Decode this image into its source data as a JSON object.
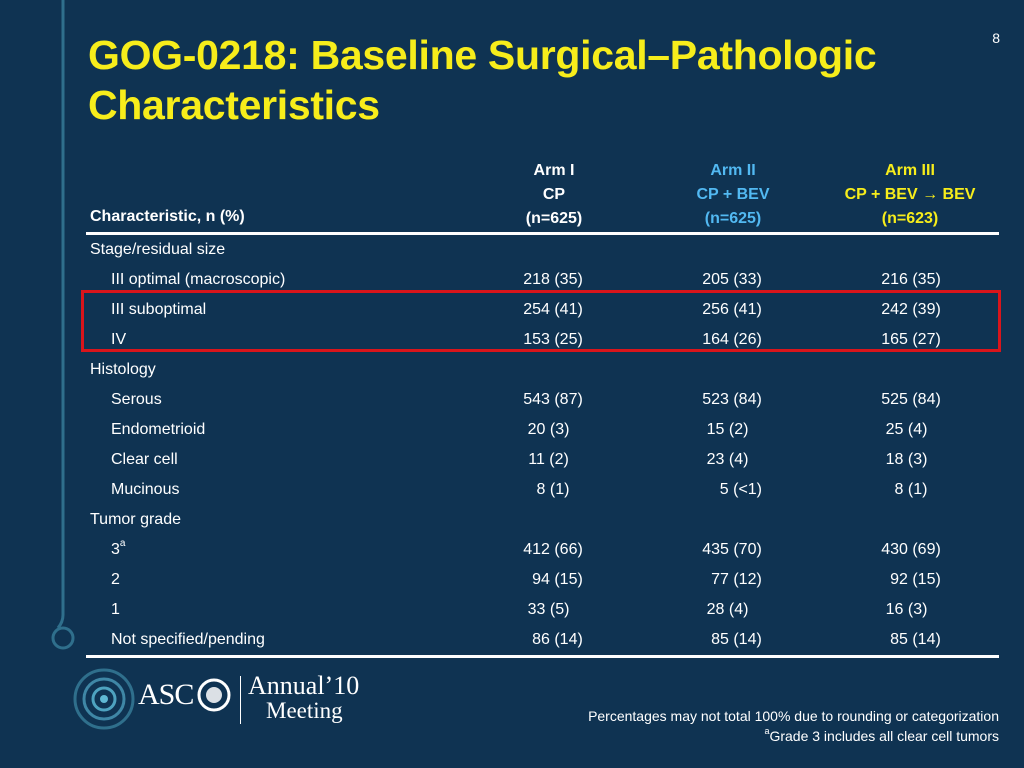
{
  "slide": {
    "number": "8",
    "title": "GOG-0218: Baseline Surgical–Pathologic Characteristics"
  },
  "table": {
    "char_header": "Characteristic, n (%)",
    "arms": [
      {
        "name": "Arm I",
        "regimen": "CP",
        "n": "(n=625)",
        "color": "#ffffff"
      },
      {
        "name": "Arm II",
        "regimen": "CP + BEV",
        "n": "(n=625)",
        "color": "#52b9f2"
      },
      {
        "name": "Arm III",
        "regimen": "CP + BEV → BEV",
        "n": "(n=623)",
        "color": "#f7ed1b"
      }
    ],
    "rows": [
      {
        "label": "Stage/residual size",
        "section": true
      },
      {
        "label": "III optimal (macroscopic)",
        "values": [
          "218 (35)",
          "205 (33)",
          "216 (35)"
        ]
      },
      {
        "label": "III suboptimal",
        "values": [
          "254 (41)",
          "256 (41)",
          "242 (39)"
        ]
      },
      {
        "label": "IV",
        "values": [
          "153 (25)",
          "164 (26)",
          "165 (27)"
        ]
      },
      {
        "label": "Histology",
        "section": true
      },
      {
        "label": "Serous",
        "values": [
          "543 (87)",
          "523 (84)",
          "525 (84)"
        ]
      },
      {
        "label": "Endometrioid",
        "values": [
          "20 (3)  ",
          "15 (2)  ",
          "25 (4)  "
        ]
      },
      {
        "label": "Clear cell",
        "values": [
          "11 (2)  ",
          "23 (4)  ",
          "18 (3)  "
        ]
      },
      {
        "label": "Mucinous",
        "values": [
          "  8 (1)  ",
          "    5 (<1)",
          "  8 (1)  "
        ]
      },
      {
        "label": "Tumor grade",
        "section": true
      },
      {
        "label": "3",
        "sup": "a",
        "values": [
          "412 (66)",
          "435 (70)",
          "430 (69)"
        ]
      },
      {
        "label": "2",
        "values": [
          "  94 (15)",
          "  77 (12)",
          "  92 (15)"
        ]
      },
      {
        "label": "1",
        "values": [
          "33 (5)  ",
          "28 (4)  ",
          "16 (3)  "
        ]
      },
      {
        "label": "Not specified/pending",
        "values": [
          "  86 (14)",
          "  85 (14)",
          "  85 (14)"
        ]
      }
    ]
  },
  "highlight_color": "#d9151b",
  "logo": {
    "org": "ASC",
    "annual": "Annual’10",
    "meeting": "Meeting"
  },
  "footnotes": {
    "line1": "Percentages may not total 100% due to rounding or categorization",
    "line2_sup": "a",
    "line2": "Grade 3 includes all clear cell tumors"
  },
  "colors": {
    "background": "#0f3352",
    "title": "#f7ed1b",
    "deco": "#2f6f8c"
  }
}
